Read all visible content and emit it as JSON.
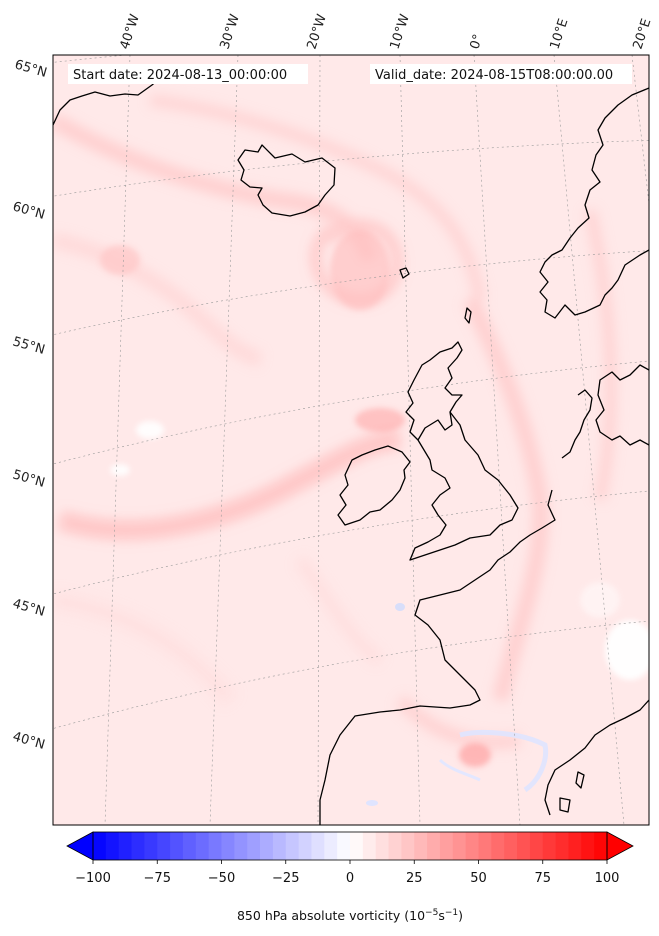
{
  "header": {
    "start_date": "Start date: 2024-08-13_00:00:00",
    "valid_date": "Valid_date: 2024-08-15T08:00:00.00"
  },
  "axes": {
    "longitude_labels": [
      "40°W",
      "30°W",
      "20°W",
      "10°W",
      "0°",
      "10°E",
      "20°E"
    ],
    "latitude_labels": [
      "65°N",
      "60°N",
      "55°N",
      "50°N",
      "45°N",
      "40°N"
    ]
  },
  "colorbar": {
    "ticks": [
      "−100",
      "−75",
      "−50",
      "−25",
      "0",
      "25",
      "50",
      "75",
      "100"
    ],
    "label_main": "850 hPa absolute vorticity (10",
    "label_exp1": "−5",
    "label_mid": "s",
    "label_exp2": "−1",
    "label_end": ")",
    "vmin": -100,
    "vmax": 100,
    "levels": 40,
    "extend": "both",
    "cmap": "bwr",
    "color_min": "#0000ff",
    "color_mid": "#ffffff",
    "color_max": "#ff0000"
  },
  "colors": {
    "background_field": "#ffe9e9",
    "coastline": "#000000",
    "gridline": "#999999"
  }
}
